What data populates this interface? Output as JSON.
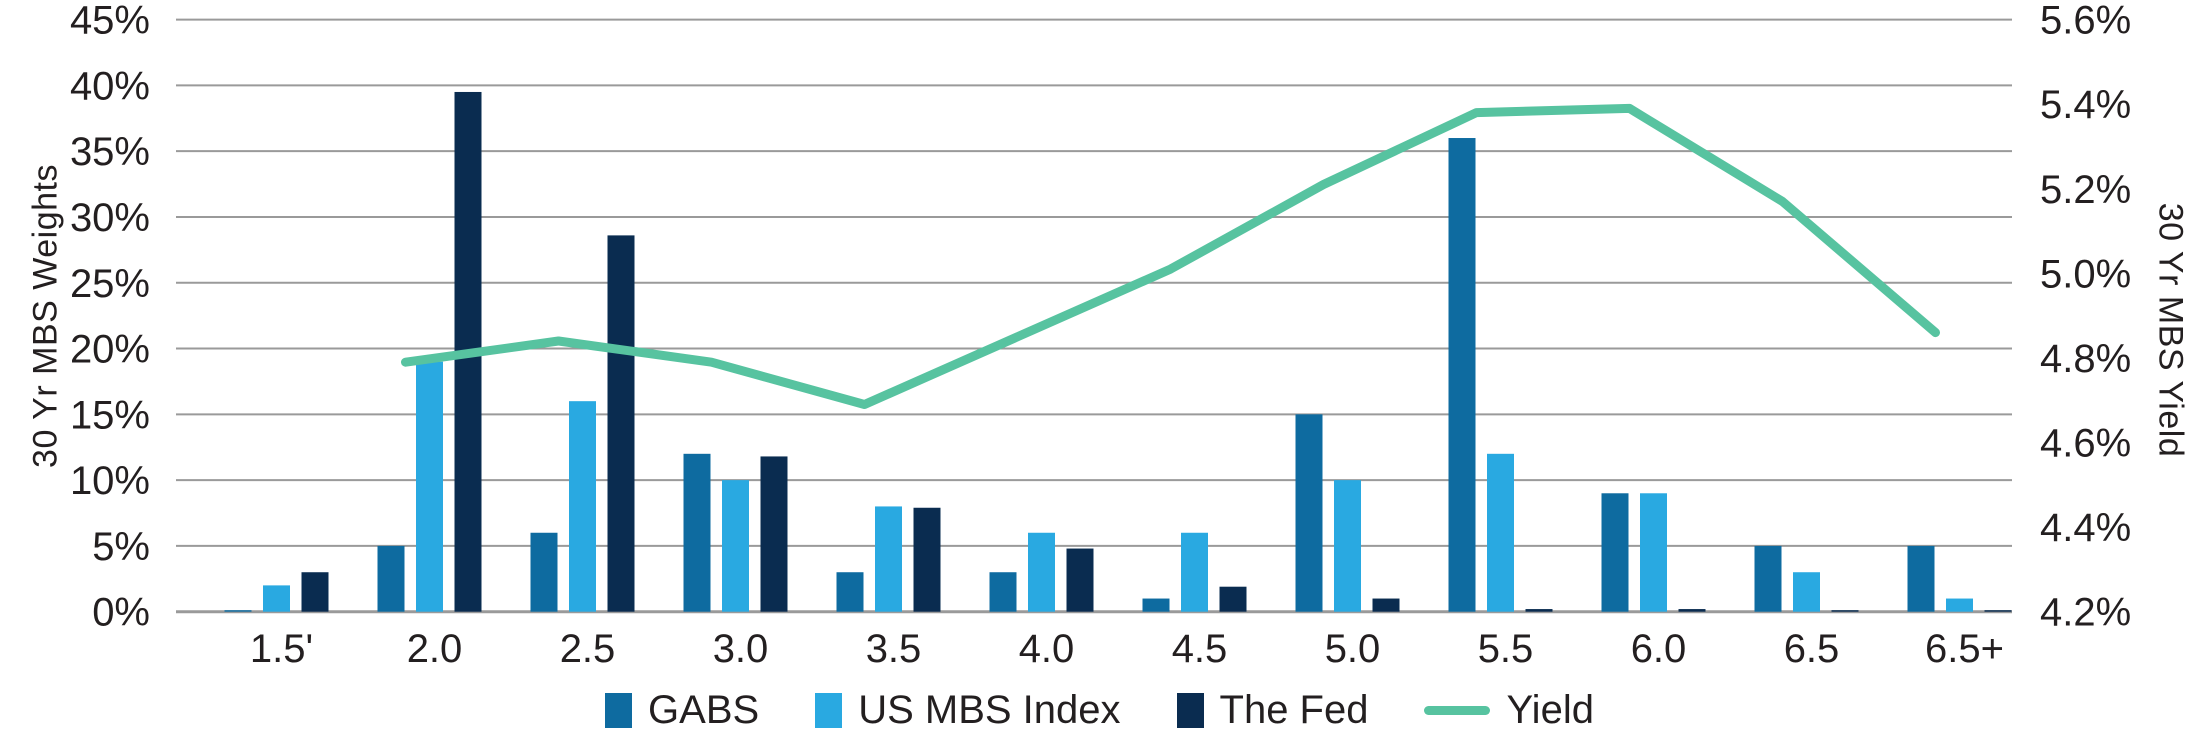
{
  "chart_data": {
    "type": "bar",
    "subtype": "grouped-bars-with-line-overlay",
    "categories": [
      "1.5'",
      "2.0",
      "2.5",
      "3.0",
      "3.5",
      "4.0",
      "4.5",
      "5.0",
      "5.5",
      "6.0",
      "6.5",
      "6.5+"
    ],
    "series": [
      {
        "name": "GABS",
        "type": "bar",
        "axis": "left",
        "color": "#0E6BA0",
        "values": [
          0.1,
          5,
          6,
          12,
          3,
          3,
          1,
          15,
          36,
          9,
          5,
          5
        ]
      },
      {
        "name": "US MBS Index",
        "type": "bar",
        "axis": "left",
        "color": "#29A9E1",
        "values": [
          2,
          19,
          16,
          10,
          8,
          6,
          6,
          10,
          12,
          9,
          3,
          1
        ]
      },
      {
        "name": "The Fed",
        "type": "bar",
        "axis": "left",
        "color": "#0A2C50",
        "values": [
          3,
          39.5,
          28.6,
          11.8,
          7.9,
          4.8,
          1.9,
          1,
          0.2,
          0.2,
          0.1,
          0.1
        ]
      },
      {
        "name": "Yield",
        "type": "line",
        "axis": "right",
        "color": "#57C3A0",
        "values": [
          null,
          4.79,
          4.84,
          4.79,
          4.69,
          4.85,
          5.01,
          5.21,
          5.38,
          5.39,
          5.17,
          4.86
        ]
      }
    ],
    "left_axis": {
      "title": "30 Yr MBS Weights",
      "min": 0,
      "max": 45,
      "step": 5,
      "tick_labels": [
        "0%",
        "5%",
        "10%",
        "15%",
        "20%",
        "25%",
        "30%",
        "35%",
        "40%",
        "45%"
      ]
    },
    "right_axis": {
      "title": "30 Yr MBS Yield",
      "min": 4.2,
      "max": 5.6,
      "step": 0.2,
      "tick_labels": [
        "4.2%",
        "4.4%",
        "4.6%",
        "4.8%",
        "5.0%",
        "5.2%",
        "5.4%",
        "5.6%"
      ]
    },
    "grid": "horizontal",
    "gridline_color": "#9A9A9A",
    "text_color": "#231F20",
    "legend_position": "bottom-center"
  },
  "legend": {
    "items": [
      {
        "label": "GABS"
      },
      {
        "label": "US MBS Index"
      },
      {
        "label": "The Fed"
      },
      {
        "label": "Yield"
      }
    ]
  }
}
